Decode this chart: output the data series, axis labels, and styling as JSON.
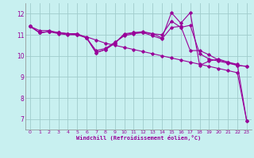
{
  "bg_color": "#c8f0f0",
  "grid_color": "#a0cccc",
  "line_color": "#990099",
  "xlabel": "Windchill (Refroidissement éolien,°C)",
  "xlabel_color": "#990099",
  "ylim": [
    6.5,
    12.5
  ],
  "xlim": [
    -0.5,
    23.5
  ],
  "yticks": [
    7,
    8,
    9,
    10,
    11,
    12
  ],
  "xticks": [
    0,
    1,
    2,
    3,
    4,
    5,
    6,
    7,
    8,
    9,
    10,
    11,
    12,
    13,
    14,
    15,
    16,
    17,
    18,
    19,
    20,
    21,
    22,
    23
  ],
  "series": [
    [
      11.4,
      11.1,
      11.15,
      11.1,
      11.05,
      11.05,
      10.85,
      10.15,
      10.3,
      10.6,
      11.05,
      11.1,
      11.15,
      11.05,
      11.0,
      11.65,
      11.35,
      11.45,
      10.1,
      9.85,
      9.75,
      9.65,
      9.55,
      9.5
    ],
    [
      11.4,
      11.1,
      11.15,
      11.1,
      11.05,
      11.05,
      10.85,
      10.15,
      10.3,
      10.6,
      11.0,
      11.1,
      11.1,
      11.05,
      10.85,
      12.05,
      11.55,
      12.05,
      9.55,
      9.75,
      9.85,
      9.7,
      9.6,
      6.9
    ],
    [
      11.4,
      11.2,
      11.2,
      11.1,
      11.05,
      11.0,
      10.9,
      10.75,
      10.6,
      10.5,
      10.4,
      10.3,
      10.2,
      10.1,
      10.0,
      9.9,
      9.8,
      9.7,
      9.6,
      9.5,
      9.4,
      9.3,
      9.2,
      6.9
    ],
    [
      11.4,
      11.1,
      11.15,
      11.05,
      11.0,
      11.0,
      10.85,
      10.25,
      10.35,
      10.65,
      10.95,
      11.05,
      11.1,
      10.95,
      10.8,
      11.35,
      11.4,
      10.25,
      10.25,
      10.05,
      9.8,
      9.7,
      9.55,
      9.5
    ]
  ]
}
